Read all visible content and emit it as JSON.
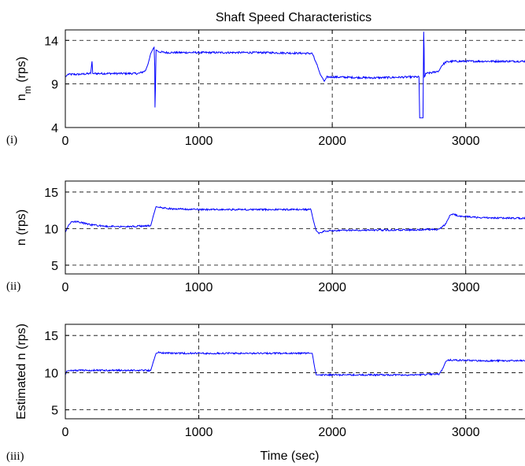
{
  "figure_title": "Shaft Speed Characteristics",
  "chart_data": [
    {
      "type": "line",
      "panel_label": "(i)",
      "title": "Shaft Speed Characteristics",
      "xlabel": "",
      "ylabel": "n_m (rps)",
      "ylabel_main": "n",
      "ylabel_sub": "m",
      "ylabel_unit": " (rps)",
      "xlim": [
        0,
        3450
      ],
      "ylim": [
        4,
        15.2
      ],
      "xticks": [
        0,
        1000,
        2000,
        3000
      ],
      "xtick_labels": [
        "0",
        "1000",
        "2000",
        "3000"
      ],
      "yticks": [
        4,
        9,
        14
      ],
      "ytick_labels": [
        "4",
        "9",
        "14"
      ],
      "grid": true,
      "line_color": "#0000ff",
      "series": [
        {
          "x": [
            0,
            20,
            100,
            190,
            200,
            205,
            215,
            300,
            550,
            600,
            620,
            640,
            660,
            665,
            670,
            672,
            675,
            680,
            690,
            700,
            750,
            1000,
            1500,
            1850,
            1890,
            1910,
            1930,
            1940,
            1960,
            2000,
            2300,
            2600,
            2650,
            2655,
            2660,
            2665,
            2670,
            2680,
            2685,
            2688,
            2690,
            2695,
            2700,
            2750,
            2800,
            2820,
            2850,
            2900,
            3100,
            3450
          ],
          "y": [
            9.8,
            10.1,
            10.1,
            10.2,
            11.6,
            10.2,
            10.2,
            10.2,
            10.2,
            10.5,
            11.3,
            12.5,
            13.1,
            13.2,
            11.0,
            6.3,
            8.5,
            12.9,
            12.8,
            12.7,
            12.6,
            12.6,
            12.6,
            12.5,
            11.0,
            10.1,
            9.6,
            9.3,
            9.8,
            9.8,
            9.7,
            9.8,
            9.8,
            5.1,
            5.1,
            5.1,
            5.1,
            5.1,
            15.0,
            13.0,
            9.8,
            9.9,
            10.2,
            10.3,
            10.5,
            11.1,
            11.5,
            11.6,
            11.6,
            11.6
          ]
        }
      ]
    },
    {
      "type": "line",
      "panel_label": "(ii)",
      "xlabel": "",
      "ylabel": "n (rps)",
      "xlim": [
        0,
        3450
      ],
      "ylim": [
        3.8,
        16.5
      ],
      "xticks": [
        0,
        1000,
        2000,
        3000
      ],
      "xtick_labels": [
        "0",
        "1000",
        "2000",
        "3000"
      ],
      "yticks": [
        5,
        10,
        15
      ],
      "ytick_labels": [
        "5",
        "10",
        "15"
      ],
      "grid": true,
      "line_color": "#0000ff",
      "series": [
        {
          "x": [
            0,
            20,
            50,
            100,
            200,
            300,
            400,
            500,
            640,
            660,
            680,
            700,
            800,
            1000,
            1500,
            1840,
            1860,
            1880,
            1900,
            1950,
            2200,
            2500,
            2800,
            2850,
            2880,
            2900,
            2950,
            3100,
            3450
          ],
          "y": [
            9.5,
            10.3,
            11.0,
            10.9,
            10.5,
            10.3,
            10.3,
            10.3,
            10.4,
            11.8,
            13.0,
            12.9,
            12.7,
            12.6,
            12.6,
            12.6,
            11.0,
            9.7,
            9.4,
            9.7,
            9.8,
            9.8,
            9.9,
            10.6,
            11.8,
            12.0,
            11.7,
            11.5,
            11.4
          ]
        }
      ]
    },
    {
      "type": "line",
      "panel_label": "(iii)",
      "xlabel": "Time (sec)",
      "ylabel": "Estimated n (rps)",
      "xlim": [
        0,
        3450
      ],
      "ylim": [
        3.8,
        16.5
      ],
      "xticks": [
        0,
        1000,
        2000,
        3000
      ],
      "xtick_labels": [
        "0",
        "1000",
        "2000",
        "3000"
      ],
      "yticks": [
        5,
        10,
        15
      ],
      "ytick_labels": [
        "5",
        "10",
        "15"
      ],
      "grid": true,
      "line_color": "#0000ff",
      "series": [
        {
          "x": [
            0,
            10,
            30,
            100,
            300,
            500,
            600,
            640,
            660,
            680,
            700,
            800,
            1000,
            1500,
            1830,
            1850,
            1870,
            1880,
            1900,
            2000,
            2300,
            2600,
            2800,
            2830,
            2850,
            2870,
            2900,
            3100,
            3450
          ],
          "y": [
            9.7,
            10.2,
            10.3,
            10.3,
            10.3,
            10.3,
            10.3,
            10.3,
            11.5,
            12.6,
            12.7,
            12.6,
            12.6,
            12.6,
            12.6,
            12.6,
            10.5,
            9.7,
            9.7,
            9.7,
            9.7,
            9.7,
            9.8,
            10.6,
            11.5,
            11.7,
            11.7,
            11.6,
            11.6
          ]
        }
      ]
    }
  ]
}
